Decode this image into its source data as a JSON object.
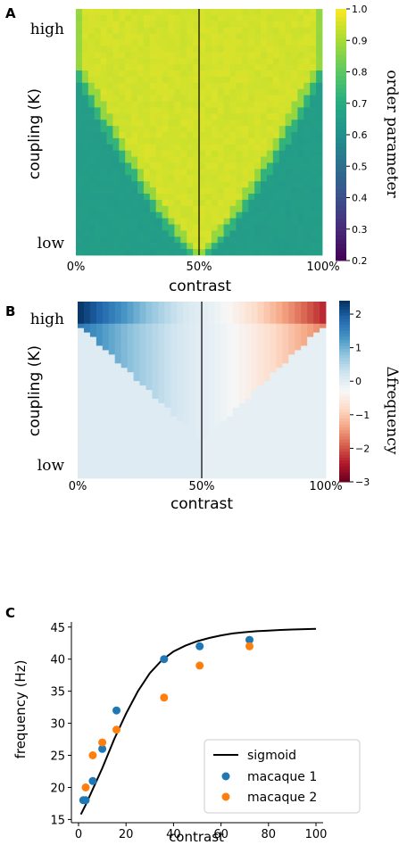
{
  "chart_data": [
    {
      "panel": "A",
      "type": "heatmap",
      "xlabel": "contrast",
      "ylabel": "coupling (K)",
      "x_ticks": [
        "0%",
        "50%",
        "100%"
      ],
      "y_ticks": [
        "high",
        "low"
      ],
      "colorbar": {
        "label": "order parameter",
        "colormap": "viridis",
        "range": [
          0.2,
          1.0
        ],
        "ticks": [
          "1.0",
          "0.9",
          "0.8",
          "0.7",
          "0.6",
          "0.5",
          "0.4",
          "0.3",
          "0.2"
        ]
      },
      "grid": {
        "cols": 40,
        "rows": 40,
        "high_value": 0.96,
        "low_value": 0.64,
        "vertical_line_at": 0.5
      }
    },
    {
      "panel": "B",
      "type": "heatmap",
      "xlabel": "contrast",
      "ylabel": "coupling (K)",
      "x_ticks": [
        "0%",
        "50%",
        "100%"
      ],
      "y_ticks": [
        "high",
        "low"
      ],
      "colorbar": {
        "label": "Δfrequency",
        "colormap": "RdBu",
        "range": [
          -3,
          2.4
        ],
        "ticks": [
          "2",
          "1",
          "0",
          "−1",
          "−2",
          "−3"
        ]
      },
      "grid": {
        "cols": 40,
        "rows": 40,
        "max_value": 2.4,
        "vertical_line_at": 0.5
      }
    },
    {
      "panel": "C",
      "type": "scatter",
      "xlabel": "contrast",
      "ylabel": "frequency (Hz)",
      "xlim": [
        -3,
        103
      ],
      "ylim": [
        14.5,
        45.8
      ],
      "x_ticks": [
        0,
        20,
        40,
        60,
        80,
        100
      ],
      "y_ticks": [
        15,
        20,
        25,
        30,
        35,
        40,
        45
      ],
      "legend": "lower-right",
      "series": [
        {
          "name": "sigmoid",
          "kind": "line",
          "color": "#000000",
          "x": [
            1,
            3,
            6,
            10,
            15,
            20,
            25,
            30,
            35,
            40,
            45,
            50,
            55,
            60,
            65,
            70,
            75,
            80,
            85,
            90,
            95,
            100
          ],
          "y": [
            15.8,
            17.3,
            19.7,
            23.0,
            27.5,
            31.5,
            35.0,
            37.8,
            39.8,
            41.2,
            42.1,
            42.8,
            43.3,
            43.7,
            44.0,
            44.2,
            44.35,
            44.45,
            44.55,
            44.62,
            44.68,
            44.72
          ]
        },
        {
          "name": "macaque 1",
          "kind": "scatter",
          "color": "#1f77b4",
          "x": [
            2,
            3,
            6,
            10,
            16,
            36,
            51,
            72
          ],
          "y": [
            18,
            18,
            21,
            26,
            32,
            40,
            42,
            43
          ]
        },
        {
          "name": "macaque 2",
          "kind": "scatter",
          "color": "#ff7f0e",
          "x": [
            3,
            6,
            10,
            16,
            36,
            51,
            72
          ],
          "y": [
            20,
            25,
            27,
            29,
            34,
            39,
            42
          ]
        }
      ]
    }
  ],
  "panels": {
    "a": {
      "letter": "A"
    },
    "b": {
      "letter": "B"
    },
    "c": {
      "letter": "C"
    }
  }
}
